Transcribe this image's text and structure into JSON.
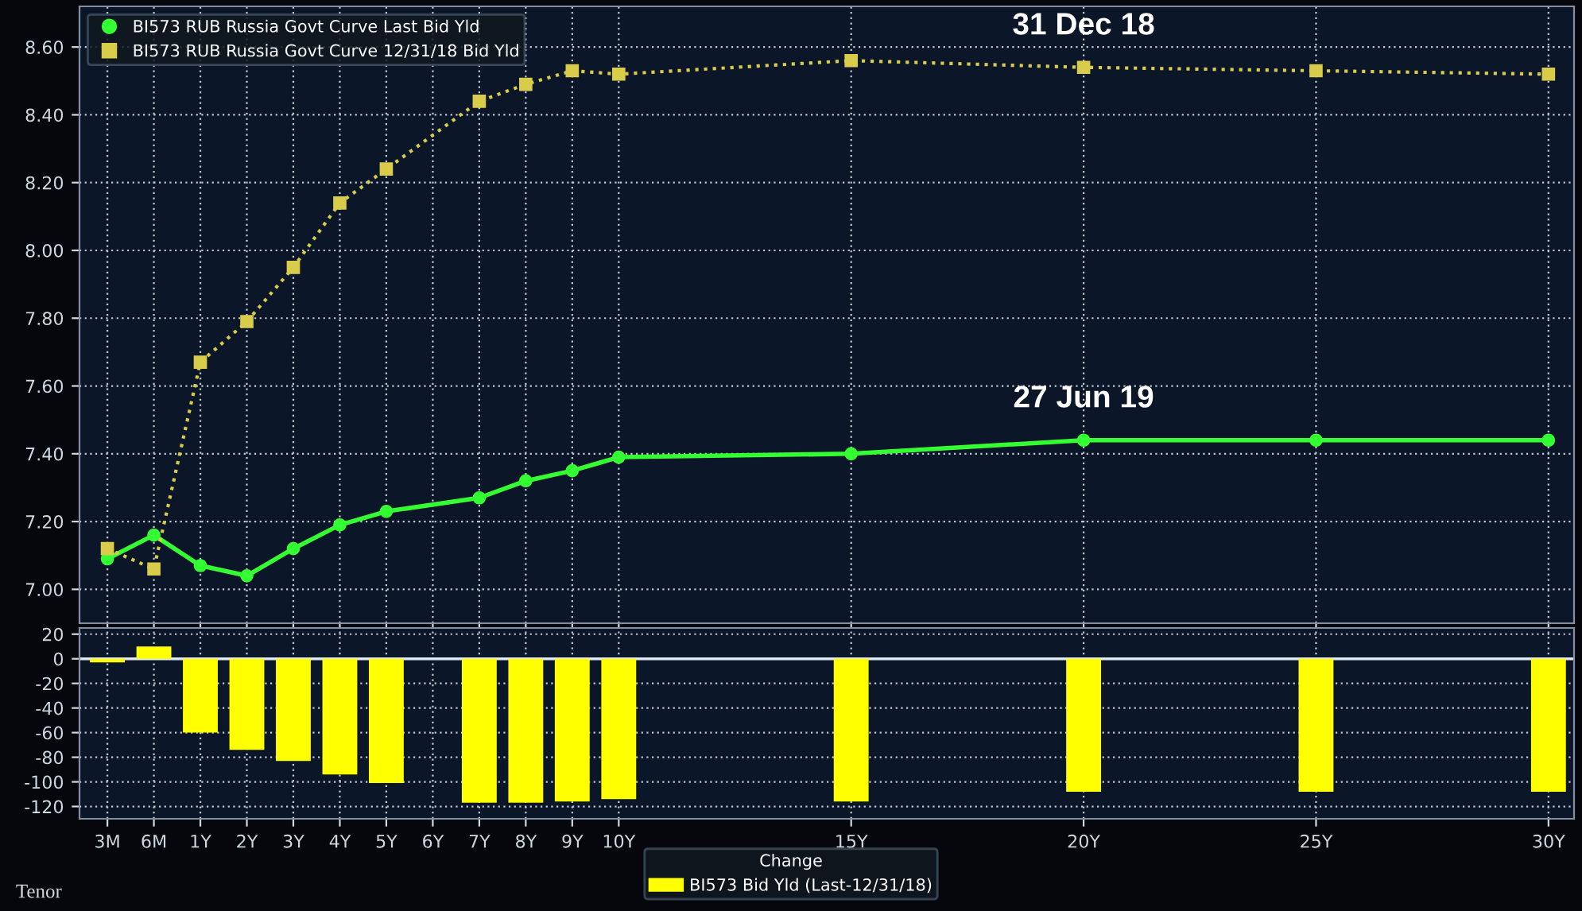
{
  "chart_data": [
    {
      "type": "line",
      "categories": [
        "3M",
        "6M",
        "1Y",
        "2Y",
        "3Y",
        "4Y",
        "5Y",
        "6Y",
        "7Y",
        "8Y",
        "9Y",
        "10Y",
        null,
        null,
        null,
        null,
        "15Y",
        null,
        null,
        null,
        null,
        "20Y",
        null,
        null,
        null,
        null,
        "25Y",
        null,
        null,
        null,
        null,
        "30Y"
      ],
      "series": [
        {
          "name": "BI573 RUB Russia Govt Curve Last Bid Yld",
          "color": "#33ff33",
          "marker": "circle",
          "line_style": "solid",
          "values": [
            7.09,
            7.16,
            7.07,
            7.04,
            7.12,
            7.19,
            7.23,
            null,
            7.27,
            7.32,
            7.35,
            7.39,
            null,
            null,
            null,
            null,
            7.4,
            null,
            null,
            null,
            null,
            7.44,
            null,
            null,
            null,
            null,
            7.44,
            null,
            null,
            null,
            null,
            7.44
          ]
        },
        {
          "name": "BI573 RUB Russia Govt Curve 12/31/18 Bid Yld",
          "color": "#d8cc4a",
          "marker": "square",
          "line_style": "dotted",
          "values": [
            7.12,
            7.06,
            7.67,
            7.79,
            7.95,
            8.14,
            8.24,
            null,
            8.44,
            8.49,
            8.53,
            8.52,
            null,
            null,
            null,
            null,
            8.56,
            null,
            null,
            null,
            null,
            8.54,
            null,
            null,
            null,
            null,
            8.53,
            null,
            null,
            null,
            null,
            8.52
          ]
        }
      ],
      "ylim": [
        6.9,
        8.72
      ],
      "yticks": [
        {
          "value": 7.0,
          "label": "7.00"
        },
        {
          "value": 7.2,
          "label": "7.20"
        },
        {
          "value": 7.4,
          "label": "7.40"
        },
        {
          "value": 7.6,
          "label": "7.60"
        },
        {
          "value": 7.8,
          "label": "7.80"
        },
        {
          "value": 8.0,
          "label": "8.00"
        },
        {
          "value": 8.2,
          "label": "8.20"
        },
        {
          "value": 8.4,
          "label": "8.40"
        },
        {
          "value": 8.6,
          "label": "8.60"
        }
      ],
      "tick_labels": "y",
      "grid": true,
      "legend": "top left",
      "annotations": [
        {
          "text": "31 Dec 18",
          "x": "20Y",
          "y": 8.54
        },
        {
          "text": "27 Jun 19",
          "x": "20Y",
          "y": 7.44
        }
      ]
    },
    {
      "type": "bar",
      "categories": [
        "3M",
        "6M",
        "1Y",
        "2Y",
        "3Y",
        "4Y",
        "5Y",
        "6Y",
        "7Y",
        "8Y",
        "9Y",
        "10Y",
        null,
        null,
        null,
        null,
        "15Y",
        null,
        null,
        null,
        null,
        "20Y",
        null,
        null,
        null,
        null,
        "25Y",
        null,
        null,
        null,
        null,
        "30Y"
      ],
      "series": [
        {
          "name": "BI573 Bid Yld (Last-12/31/18)",
          "color": "#ffff00",
          "values": [
            -3,
            10,
            -60,
            -74,
            -83,
            -94,
            -101,
            null,
            -117,
            -117,
            -116,
            -114,
            null,
            null,
            null,
            null,
            -116,
            null,
            null,
            null,
            null,
            -108,
            null,
            null,
            null,
            null,
            -108,
            null,
            null,
            null,
            null,
            -108
          ]
        }
      ],
      "legend_title": "Change",
      "xlabel": "Tenor",
      "ylim": [
        -130,
        25
      ],
      "yticks": [
        -120,
        -100,
        -80,
        -60,
        -40,
        -20,
        0,
        20
      ],
      "ref_lines": [
        {
          "axis": "y",
          "value": 0,
          "color": "#e0e8f0"
        }
      ],
      "grid": true,
      "legend": "bottom"
    }
  ]
}
